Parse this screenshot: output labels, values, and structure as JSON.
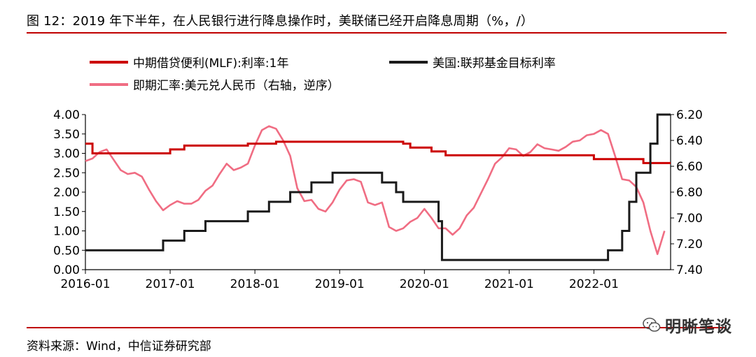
{
  "figure": {
    "title": "图 12：2019 年下半年，在人民银行进行降息操作时，美联储已经开启降息周期（%，/）",
    "source": "资料来源：Wind，中信证券研究部",
    "watermark": "明晰笔谈",
    "watermark_icon": "wechat-icon"
  },
  "colors": {
    "mlf": "#cc0000",
    "fed": "#1a1a1a",
    "fx": "#f06d83",
    "rule": "#c00000"
  },
  "legend": [
    {
      "label": "中期借贷便利(MLF):利率:1年",
      "color": "#cc0000"
    },
    {
      "label": "美国:联邦基金目标利率",
      "color": "#1a1a1a"
    },
    {
      "label": "即期汇率:美元兑人民币（右轴，逆序）",
      "color": "#f06d83"
    }
  ],
  "chart_data": {
    "type": "line",
    "x_tick_labels": [
      "2016-01",
      "2017-01",
      "2018-01",
      "2019-01",
      "2020-01",
      "2021-01",
      "2022-01"
    ],
    "left_axis": {
      "min": 0,
      "max": 4,
      "ticks": [
        "0.00",
        "0.50",
        "1.00",
        "1.50",
        "2.00",
        "2.50",
        "3.00",
        "3.50",
        "4.00"
      ]
    },
    "right_axis": {
      "min": 6.2,
      "max": 7.4,
      "inverted": true,
      "ticks": [
        "6.20",
        "6.40",
        "6.60",
        "6.80",
        "7.00",
        "7.20",
        "7.40"
      ]
    },
    "legend_position": "top",
    "grid": false,
    "series": [
      {
        "name": "中期借贷便利(MLF):利率:1年",
        "axis": "left",
        "step": true,
        "x": [
          "2016-01",
          "2016-02",
          "2017-01",
          "2017-03",
          "2017-12",
          "2018-04",
          "2019-10",
          "2019-11",
          "2020-02",
          "2020-04",
          "2022-01",
          "2022-08",
          "2022-10"
        ],
        "y": [
          3.25,
          3.0,
          3.1,
          3.2,
          3.25,
          3.3,
          3.25,
          3.15,
          3.05,
          2.95,
          2.85,
          2.75,
          2.75
        ]
      },
      {
        "name": "美国:联邦基金目标利率",
        "axis": "left",
        "step": true,
        "x": [
          "2016-01",
          "2016-12",
          "2017-03",
          "2017-06",
          "2017-12",
          "2018-03",
          "2018-06",
          "2018-09",
          "2018-12",
          "2019-07",
          "2019-09",
          "2019-10",
          "2020-03",
          "2020-03-16",
          "2022-03",
          "2022-05",
          "2022-06",
          "2022-07",
          "2022-09",
          "2022-10"
        ],
        "y": [
          0.5,
          0.75,
          1.0,
          1.25,
          1.5,
          1.75,
          2.0,
          2.25,
          2.5,
          2.25,
          2.0,
          1.75,
          1.25,
          0.25,
          0.5,
          1.0,
          1.75,
          2.5,
          3.25,
          4.0
        ]
      },
      {
        "name": "即期汇率:美元兑人民币（右轴，逆序）",
        "axis": "right",
        "step": false,
        "x": [
          "2016-01",
          "2016-02",
          "2016-03",
          "2016-04",
          "2016-05",
          "2016-06",
          "2016-07",
          "2016-08",
          "2016-09",
          "2016-10",
          "2016-11",
          "2016-12",
          "2017-01",
          "2017-02",
          "2017-03",
          "2017-04",
          "2017-05",
          "2017-06",
          "2017-07",
          "2017-08",
          "2017-09",
          "2017-10",
          "2017-11",
          "2017-12",
          "2018-01",
          "2018-02",
          "2018-03",
          "2018-04",
          "2018-05",
          "2018-06",
          "2018-07",
          "2018-08",
          "2018-09",
          "2018-10",
          "2018-11",
          "2018-12",
          "2019-01",
          "2019-02",
          "2019-03",
          "2019-04",
          "2019-05",
          "2019-06",
          "2019-07",
          "2019-08",
          "2019-09",
          "2019-10",
          "2019-11",
          "2019-12",
          "2020-01",
          "2020-02",
          "2020-03",
          "2020-04",
          "2020-05",
          "2020-06",
          "2020-07",
          "2020-08",
          "2020-09",
          "2020-10",
          "2020-11",
          "2020-12",
          "2021-01",
          "2021-02",
          "2021-03",
          "2021-04",
          "2021-05",
          "2021-06",
          "2021-07",
          "2021-08",
          "2021-09",
          "2021-10",
          "2021-11",
          "2021-12",
          "2022-01",
          "2022-02",
          "2022-03",
          "2022-04",
          "2022-05",
          "2022-06",
          "2022-07",
          "2022-08",
          "2022-09",
          "2022-10",
          "2022-11"
        ],
        "y": [
          6.56,
          6.54,
          6.49,
          6.47,
          6.55,
          6.63,
          6.66,
          6.65,
          6.68,
          6.78,
          6.87,
          6.94,
          6.9,
          6.87,
          6.89,
          6.89,
          6.86,
          6.79,
          6.75,
          6.66,
          6.58,
          6.63,
          6.61,
          6.58,
          6.44,
          6.32,
          6.29,
          6.31,
          6.4,
          6.52,
          6.77,
          6.87,
          6.86,
          6.93,
          6.95,
          6.88,
          6.78,
          6.71,
          6.7,
          6.72,
          6.88,
          6.9,
          6.88,
          7.07,
          7.1,
          7.08,
          7.03,
          7.0,
          6.93,
          7.0,
          7.08,
          7.08,
          7.13,
          7.08,
          6.98,
          6.92,
          6.81,
          6.7,
          6.58,
          6.53,
          6.46,
          6.47,
          6.52,
          6.49,
          6.43,
          6.46,
          6.47,
          6.48,
          6.45,
          6.41,
          6.4,
          6.36,
          6.35,
          6.32,
          6.35,
          6.52,
          6.7,
          6.71,
          6.76,
          6.88,
          7.1,
          7.28,
          7.1
        ]
      }
    ]
  }
}
